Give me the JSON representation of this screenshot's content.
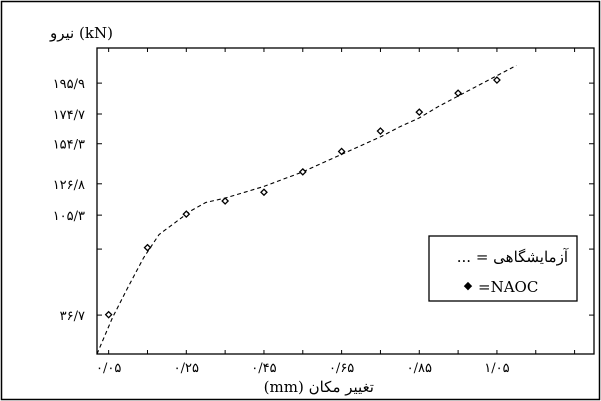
{
  "chart_data": {
    "type": "scatter",
    "ylabel": "نیرو (kN)",
    "xlabel": "تغییر مکان  (mm)",
    "xlim": [
      0.02,
      1.3
    ],
    "ylim": [
      10,
      220
    ],
    "x_ticks": [
      0.05,
      0.25,
      0.45,
      0.65,
      0.85,
      1.05
    ],
    "x_tick_labels": [
      "۰/۰۵",
      "۰/۲۵",
      "۰/۴۵",
      "۰/۶۵",
      "۰/۸۵",
      "۱/۰۵"
    ],
    "y_ticks": [
      36.7,
      105.3,
      126.8,
      154.3,
      174.7,
      195.9
    ],
    "y_tick_labels": [
      "۳۶/۷",
      "۱۰۵/۳",
      "۱۲۶/۸",
      "۱۵۴/۳",
      "۱۷۴/۷",
      "۱۹۵/۹"
    ],
    "legend_position": "right",
    "series": [
      {
        "name": "آزمایشگاهی",
        "legend_label": "آزمایشگاهی = ...",
        "style": "dashed-line",
        "x": [
          0.02,
          0.06,
          0.1,
          0.14,
          0.18,
          0.22,
          0.26,
          0.3,
          0.35,
          0.4,
          0.45,
          0.5,
          0.55,
          0.6,
          0.65,
          0.7,
          0.75,
          0.8,
          0.85,
          0.9,
          0.95,
          1.0,
          1.05,
          1.1
        ],
        "y": [
          10,
          35,
          56,
          76,
          92,
          100,
          108,
          114,
          117,
          121,
          125,
          130,
          135,
          141,
          147,
          153,
          159,
          166,
          172,
          180,
          187,
          194,
          201,
          208
        ]
      },
      {
        "name": "NAOC",
        "legend_label": "=NAOC",
        "style": "diamond-markers",
        "x": [
          0.05,
          0.15,
          0.25,
          0.35,
          0.45,
          0.55,
          0.65,
          0.75,
          0.85,
          0.95,
          1.05
        ],
        "y": [
          37,
          83,
          106,
          115,
          121,
          135,
          149,
          163,
          176,
          189,
          198
        ]
      }
    ]
  }
}
